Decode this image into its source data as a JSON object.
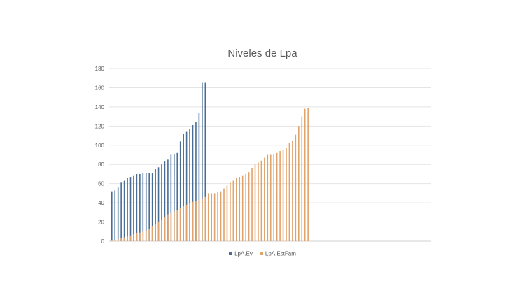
{
  "chart_data": {
    "type": "bar",
    "title": "Niveles de Lpa",
    "xlabel": "",
    "ylabel": "",
    "ylim": [
      0,
      180
    ],
    "yticks": [
      0,
      20,
      40,
      60,
      80,
      100,
      120,
      140,
      160,
      180
    ],
    "grid": true,
    "legend_position": "bottom",
    "series": [
      {
        "name": "LpA.Ev",
        "color": "#4a6d96",
        "values": [
          52,
          53,
          56,
          61,
          63,
          66,
          67,
          68,
          70,
          70,
          71,
          71,
          71,
          71,
          75,
          77,
          80,
          83,
          85,
          90,
          91,
          92,
          104,
          112,
          114,
          117,
          121,
          124,
          134,
          165,
          165
        ]
      },
      {
        "name": "LpA.EstFam",
        "color": "#e0a36b",
        "values": [
          1,
          1,
          2,
          3,
          4,
          5,
          6,
          7,
          8,
          9,
          10,
          11,
          13,
          16,
          18,
          20,
          22,
          25,
          28,
          30,
          31,
          32,
          35,
          37,
          38,
          40,
          41,
          42,
          43,
          44,
          46,
          50,
          50,
          50,
          51,
          52,
          55,
          58,
          61,
          63,
          66,
          67,
          68,
          70,
          72,
          76,
          80,
          82,
          84,
          87,
          90,
          90,
          91,
          92,
          94,
          95,
          97,
          102,
          105,
          111,
          120,
          130,
          138,
          139
        ]
      }
    ]
  }
}
